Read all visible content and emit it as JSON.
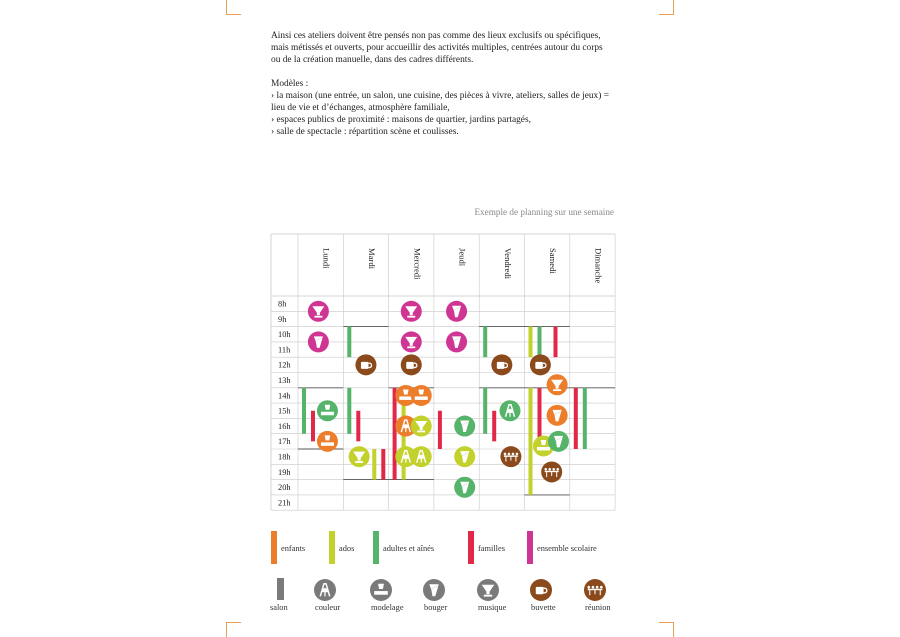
{
  "intro": {
    "paragraph": "Ainsi ces ateliers doivent être pensés non pas comme des lieux exclusifs ou spécifiques, mais métissés et ouverts,  pour accueillir des activités multiples, centrées autour du corps ou de la création manuelle, dans des cadres différents.",
    "models_title": "Modèles :",
    "models": [
      "› la maison (une entrée, un salon, une cuisine, des pièces à vivre, ateliers, salles de jeux) = lieu de vie et d’échanges, atmosphère familiale,",
      "› espaces publics de proximité : maisons de quartier, jardins partagés,",
      "› salle de spectacle : répartition scène et coulisses."
    ]
  },
  "caption": "Exemple de planning sur une semaine",
  "colors": {
    "enfants": "#ec7d2a",
    "ados": "#c2d12c",
    "adultes": "#55b36a",
    "familles": "#e22848",
    "scolaire": "#cf3592",
    "salon": "#7a7a7a",
    "couleur": "#7a7a7a",
    "modelage": "#7a7a7a",
    "bouger": "#7a7a7a",
    "musique": "#7a7a7a",
    "buvette": "#8a4a1c",
    "reunion": "#8a4a1c",
    "grid": "#c8c8c8"
  },
  "days": [
    "Lundi",
    "Mardi",
    "Mercredi",
    "Jeudi",
    "Vendredi",
    "Samedi",
    "Dimanche"
  ],
  "hours": [
    "8h",
    "9h",
    "10h",
    "11h",
    "12h",
    "13h",
    "14h",
    "15h",
    "16h",
    "17h",
    "18h",
    "19h",
    "20h",
    "21h"
  ],
  "schedule": {
    "bars": [
      {
        "day": 0,
        "sub": 0,
        "start": 14,
        "end": 17,
        "group": "adultes"
      },
      {
        "day": 0,
        "sub": 1,
        "start": 15.5,
        "end": 17.5,
        "group": "familles"
      },
      {
        "day": 1,
        "sub": 0,
        "start": 10,
        "end": 12,
        "group": "adultes"
      },
      {
        "day": 1,
        "sub": 0,
        "start": 14,
        "end": 17,
        "group": "adultes"
      },
      {
        "day": 1,
        "sub": 1,
        "start": 15.5,
        "end": 17.5,
        "group": "familles"
      },
      {
        "day": 1,
        "sub": 2,
        "start": 18,
        "end": 20,
        "group": "ados"
      },
      {
        "day": 1,
        "sub": 3,
        "start": 18,
        "end": 20,
        "group": "familles"
      },
      {
        "day": 2,
        "sub": 0,
        "start": 14,
        "end": 20,
        "group": "familles"
      },
      {
        "day": 2,
        "sub": 1,
        "start": 14,
        "end": 20,
        "group": "ados"
      },
      {
        "day": 3,
        "sub": 0,
        "start": 15.5,
        "end": 18,
        "group": "familles"
      },
      {
        "day": 4,
        "sub": 0,
        "start": 10,
        "end": 12,
        "group": "adultes"
      },
      {
        "day": 4,
        "sub": 0,
        "start": 14,
        "end": 17,
        "group": "adultes"
      },
      {
        "day": 4,
        "sub": 1,
        "start": 15.5,
        "end": 17.5,
        "group": "familles"
      },
      {
        "day": 5,
        "sub": 0,
        "start": 10,
        "end": 12,
        "group": "ados"
      },
      {
        "day": 5,
        "sub": 1,
        "start": 10,
        "end": 12,
        "group": "adultes"
      },
      {
        "day": 5,
        "sub": 2,
        "start": 10,
        "end": 12,
        "group": "familles"
      },
      {
        "day": 5,
        "sub": 0,
        "start": 14,
        "end": 21,
        "group": "ados"
      },
      {
        "day": 5,
        "sub": 1,
        "start": 14,
        "end": 18,
        "group": "familles"
      },
      {
        "day": 6,
        "sub": 0,
        "start": 14,
        "end": 18,
        "group": "familles"
      },
      {
        "day": 6,
        "sub": 1,
        "start": 14,
        "end": 18,
        "group": "adultes"
      }
    ],
    "icons": [
      {
        "day": 0,
        "pos": 0.45,
        "time": 9,
        "type": "musique",
        "group": "scolaire"
      },
      {
        "day": 0,
        "pos": 0.45,
        "time": 11,
        "type": "bouger",
        "group": "scolaire"
      },
      {
        "day": 0,
        "pos": 0.65,
        "time": 15.5,
        "type": "modelage",
        "group": "adultes"
      },
      {
        "day": 0,
        "pos": 0.65,
        "time": 17.5,
        "type": "modelage",
        "group": "enfants"
      },
      {
        "day": 1,
        "pos": 0.5,
        "time": 12.5,
        "type": "buvette",
        "group": "buvette"
      },
      {
        "day": 1,
        "pos": 0.35,
        "time": 18.5,
        "type": "musique",
        "group": "ados"
      },
      {
        "day": 2,
        "pos": 0.5,
        "time": 9,
        "type": "musique",
        "group": "scolaire"
      },
      {
        "day": 2,
        "pos": 0.5,
        "time": 11,
        "type": "musique",
        "group": "scolaire"
      },
      {
        "day": 2,
        "pos": 0.5,
        "time": 12.5,
        "type": "buvette",
        "group": "buvette"
      },
      {
        "day": 2,
        "pos": 0.38,
        "time": 14.5,
        "type": "modelage",
        "group": "enfants"
      },
      {
        "day": 2,
        "pos": 0.72,
        "time": 14.5,
        "type": "modelage",
        "group": "enfants"
      },
      {
        "day": 2,
        "pos": 0.38,
        "time": 16.5,
        "type": "couleur",
        "group": "enfants"
      },
      {
        "day": 2,
        "pos": 0.72,
        "time": 16.5,
        "type": "musique",
        "group": "ados"
      },
      {
        "day": 2,
        "pos": 0.38,
        "time": 18.5,
        "type": "couleur",
        "group": "ados"
      },
      {
        "day": 2,
        "pos": 0.72,
        "time": 18.5,
        "type": "couleur",
        "group": "ados"
      },
      {
        "day": 3,
        "pos": 0.5,
        "time": 9,
        "type": "bouger",
        "group": "scolaire"
      },
      {
        "day": 3,
        "pos": 0.5,
        "time": 11,
        "type": "bouger",
        "group": "scolaire"
      },
      {
        "day": 3,
        "pos": 0.68,
        "time": 16.5,
        "type": "bouger",
        "group": "adultes"
      },
      {
        "day": 3,
        "pos": 0.68,
        "time": 18.5,
        "type": "bouger",
        "group": "ados"
      },
      {
        "day": 3,
        "pos": 0.68,
        "time": 20.5,
        "type": "bouger",
        "group": "adultes"
      },
      {
        "day": 4,
        "pos": 0.5,
        "time": 12.5,
        "type": "buvette",
        "group": "buvette"
      },
      {
        "day": 4,
        "pos": 0.68,
        "time": 15.5,
        "type": "couleur",
        "group": "adultes"
      },
      {
        "day": 4,
        "pos": 0.7,
        "time": 18.5,
        "type": "reunion",
        "group": "reunion"
      },
      {
        "day": 5,
        "pos": 0.35,
        "time": 12.5,
        "type": "buvette",
        "group": "buvette"
      },
      {
        "day": 5,
        "pos": 0.72,
        "time": 13.8,
        "type": "musique",
        "group": "enfants"
      },
      {
        "day": 5,
        "pos": 0.72,
        "time": 15.8,
        "type": "bouger",
        "group": "enfants"
      },
      {
        "day": 5,
        "pos": 0.42,
        "time": 17.8,
        "type": "modelage",
        "group": "ados"
      },
      {
        "day": 5,
        "pos": 0.75,
        "time": 17.5,
        "type": "bouger",
        "group": "adultes"
      },
      {
        "day": 5,
        "pos": 0.6,
        "time": 19.5,
        "type": "reunion",
        "group": "reunion"
      }
    ]
  },
  "legend": {
    "groups": [
      {
        "key": "enfants",
        "label": "enfants"
      },
      {
        "key": "ados",
        "label": "ados"
      },
      {
        "key": "adultes",
        "label": "adultes et aînés"
      },
      {
        "key": "familles",
        "label": "familles"
      },
      {
        "key": "scolaire",
        "label": "ensemble scolaire"
      }
    ],
    "activities": [
      {
        "key": "salon",
        "label": "salon"
      },
      {
        "key": "couleur",
        "label": "couleur"
      },
      {
        "key": "modelage",
        "label": "modelage"
      },
      {
        "key": "bouger",
        "label": "bouger"
      },
      {
        "key": "musique",
        "label": "musique"
      },
      {
        "key": "buvette",
        "label": "buvette"
      },
      {
        "key": "reunion",
        "label": "réunion"
      }
    ]
  }
}
